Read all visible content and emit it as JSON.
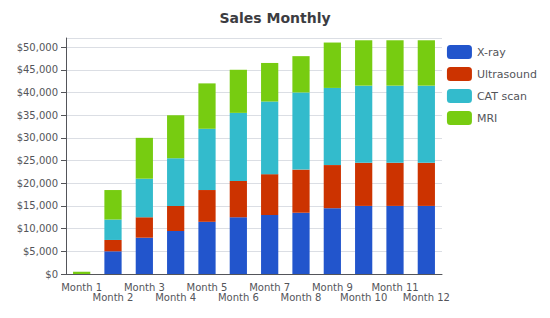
{
  "chart_data": {
    "type": "bar",
    "title": "Sales Monthly",
    "categories": [
      "Month 1",
      "Month 2",
      "Month 3",
      "Month 4",
      "Month 5",
      "Month 6",
      "Month 7",
      "Month 8",
      "Month 9",
      "Month 10",
      "Month 11",
      "Month 12"
    ],
    "series": [
      {
        "name": "X-ray",
        "color": "#2255CC",
        "values": [
          0,
          5000,
          8000,
          9500,
          11500,
          12500,
          13000,
          13500,
          14500,
          15000,
          15000,
          15000
        ]
      },
      {
        "name": "Ultrasound",
        "color": "#CC3300",
        "values": [
          0,
          2500,
          4500,
          5500,
          7000,
          8000,
          9000,
          9500,
          9500,
          9500,
          9500,
          9500
        ]
      },
      {
        "name": "CAT scan",
        "color": "#33BBCC",
        "values": [
          0,
          4500,
          8500,
          10500,
          13500,
          15000,
          16000,
          17000,
          17000,
          17000,
          17000,
          17000
        ]
      },
      {
        "name": "MRI",
        "color": "#77CC11",
        "values": [
          500,
          6500,
          9000,
          9500,
          10000,
          9500,
          8500,
          8000,
          10000,
          10000,
          10000,
          10000
        ]
      }
    ],
    "stacked": true,
    "ylim": [
      0,
      52000
    ],
    "yticks": [
      {
        "value": 0,
        "label": "$0"
      },
      {
        "value": 5000,
        "label": "$5,000"
      },
      {
        "value": 10000,
        "label": "$10,000"
      },
      {
        "value": 15000,
        "label": "$15,000"
      },
      {
        "value": 20000,
        "label": "$20,000"
      },
      {
        "value": 25000,
        "label": "$25,000"
      },
      {
        "value": 30000,
        "label": "$30,000"
      },
      {
        "value": 35000,
        "label": "$35,000"
      },
      {
        "value": 40000,
        "label": "$40,000"
      },
      {
        "value": 45000,
        "label": "$45,000"
      },
      {
        "value": 50000,
        "label": "$50,000"
      }
    ],
    "grid": true,
    "legend": "right"
  }
}
